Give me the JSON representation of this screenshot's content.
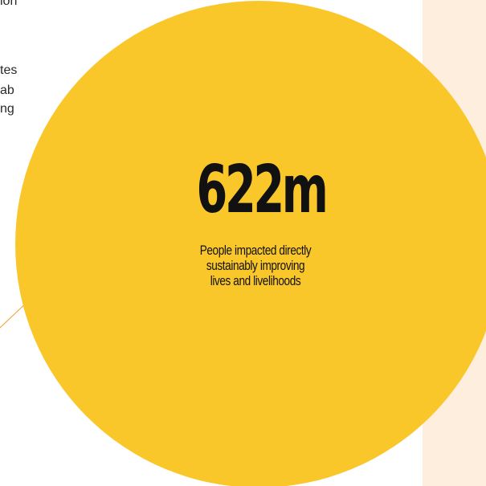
{
  "background_text": {
    "fragments": [
      "ion",
      "tes",
      "ab",
      "ng"
    ]
  },
  "stat": {
    "value": "622m",
    "caption_lines": [
      "People impacted directly",
      "sustainably improving",
      "lives and livelihoods"
    ]
  },
  "colors": {
    "circle": "#fac72b",
    "side_panel": "#fdeedd",
    "connector_line": "#f0a030",
    "text": "#111111"
  }
}
